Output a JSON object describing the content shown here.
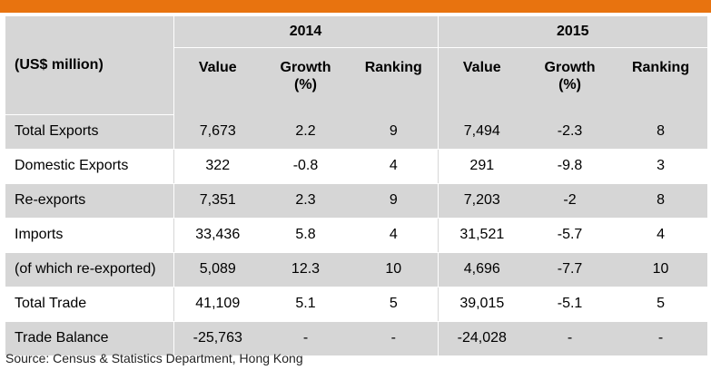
{
  "header": {
    "unit": "(US$ million)",
    "years": [
      "2014",
      "2015"
    ],
    "columns": [
      "Value",
      "Growth\n(%)",
      "Ranking",
      "Value",
      "Growth\n(%)",
      "Ranking"
    ]
  },
  "rows": [
    {
      "label": "Total Exports",
      "cells": [
        "7,673",
        "2.2",
        "9",
        "7,494",
        "-2.3",
        "8"
      ]
    },
    {
      "label": "Domestic Exports",
      "cells": [
        "322",
        "-0.8",
        "4",
        "291",
        "-9.8",
        "3"
      ]
    },
    {
      "label": "Re-exports",
      "cells": [
        "7,351",
        "2.3",
        "9",
        "7,203",
        "-2",
        "8"
      ]
    },
    {
      "label": "Imports",
      "cells": [
        "33,436",
        "5.8",
        "4",
        "31,521",
        "-5.7",
        "4"
      ]
    },
    {
      "label": "(of which re-exported)",
      "cells": [
        "5,089",
        "12.3",
        "10",
        "4,696",
        "-7.7",
        "10"
      ]
    },
    {
      "label": "Total Trade",
      "cells": [
        "41,109",
        "5.1",
        "5",
        "39,015",
        "-5.1",
        "5"
      ]
    },
    {
      "label": "Trade Balance",
      "cells": [
        "-25,763",
        "-",
        "-",
        "-24,028",
        "-",
        "-"
      ]
    }
  ],
  "source": "Source: Census & Statistics Department, Hong Kong",
  "colors": {
    "accent_bar": "#e8730f",
    "shade": "#d6d6d6"
  }
}
